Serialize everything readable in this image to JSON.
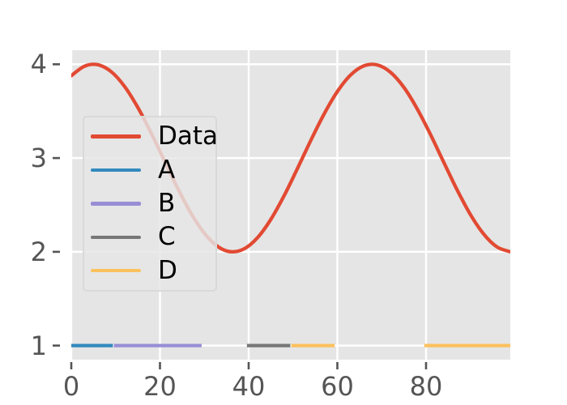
{
  "figure": {
    "style": "ggplot",
    "background_color": "#ffffff",
    "plot_background_color": "#e5e5e5",
    "grid_color": "#ffffff",
    "tick_color": "#555555",
    "tick_label_color": "#555555",
    "legend_background": "rgba(229,229,229,0.82)",
    "legend_text_color": "#000000"
  },
  "chart_data": {
    "type": "line",
    "title": "",
    "xlabel": "",
    "ylabel": "",
    "xlim": [
      0,
      99
    ],
    "ylim": [
      0.85,
      4.15
    ],
    "grid": true,
    "x_ticks": [
      0,
      20,
      40,
      60,
      80
    ],
    "x_tick_labels": [
      "0",
      "20",
      "40",
      "60",
      "80"
    ],
    "y_ticks": [
      1,
      2,
      3,
      4
    ],
    "y_tick_labels": [
      "1",
      "2",
      "3",
      "4"
    ],
    "legend_position": "inside upper-left",
    "series": [
      {
        "name": "Data",
        "color": "#E24A33",
        "kind": "curve",
        "formula": "y = 3 + cos(0.1*x - 0.5)",
        "x": [
          0,
          3,
          6,
          9,
          12,
          15,
          18,
          21,
          24,
          27,
          30,
          33,
          36,
          39,
          42,
          45,
          48,
          51,
          54,
          57,
          60,
          63,
          66,
          69,
          72,
          75,
          78,
          81,
          84,
          87,
          90,
          93,
          96,
          99
        ],
        "y": [
          3.878,
          3.98,
          3.995,
          3.921,
          3.765,
          3.54,
          3.268,
          2.971,
          2.677,
          2.411,
          2.199,
          2.058,
          2.001,
          2.033,
          2.151,
          2.346,
          2.599,
          2.888,
          3.187,
          3.469,
          3.709,
          3.886,
          3.983,
          3.993,
          3.914,
          3.754,
          3.525,
          3.251,
          2.954,
          2.661,
          2.398,
          2.189,
          2.052,
          2.0
        ]
      },
      {
        "name": "A",
        "color": "#348ABD",
        "kind": "hsegments",
        "y": 1,
        "segments": [
          [
            0,
            9
          ]
        ]
      },
      {
        "name": "B",
        "color": "#988ED5",
        "kind": "hsegments",
        "y": 1,
        "segments": [
          [
            10,
            29
          ]
        ]
      },
      {
        "name": "C",
        "color": "#777777",
        "kind": "hsegments",
        "y": 1,
        "segments": [
          [
            40,
            49
          ]
        ]
      },
      {
        "name": "D",
        "color": "#FBC15E",
        "kind": "hsegments",
        "y": 1,
        "segments": [
          [
            50,
            59
          ],
          [
            80,
            99
          ]
        ]
      }
    ]
  }
}
